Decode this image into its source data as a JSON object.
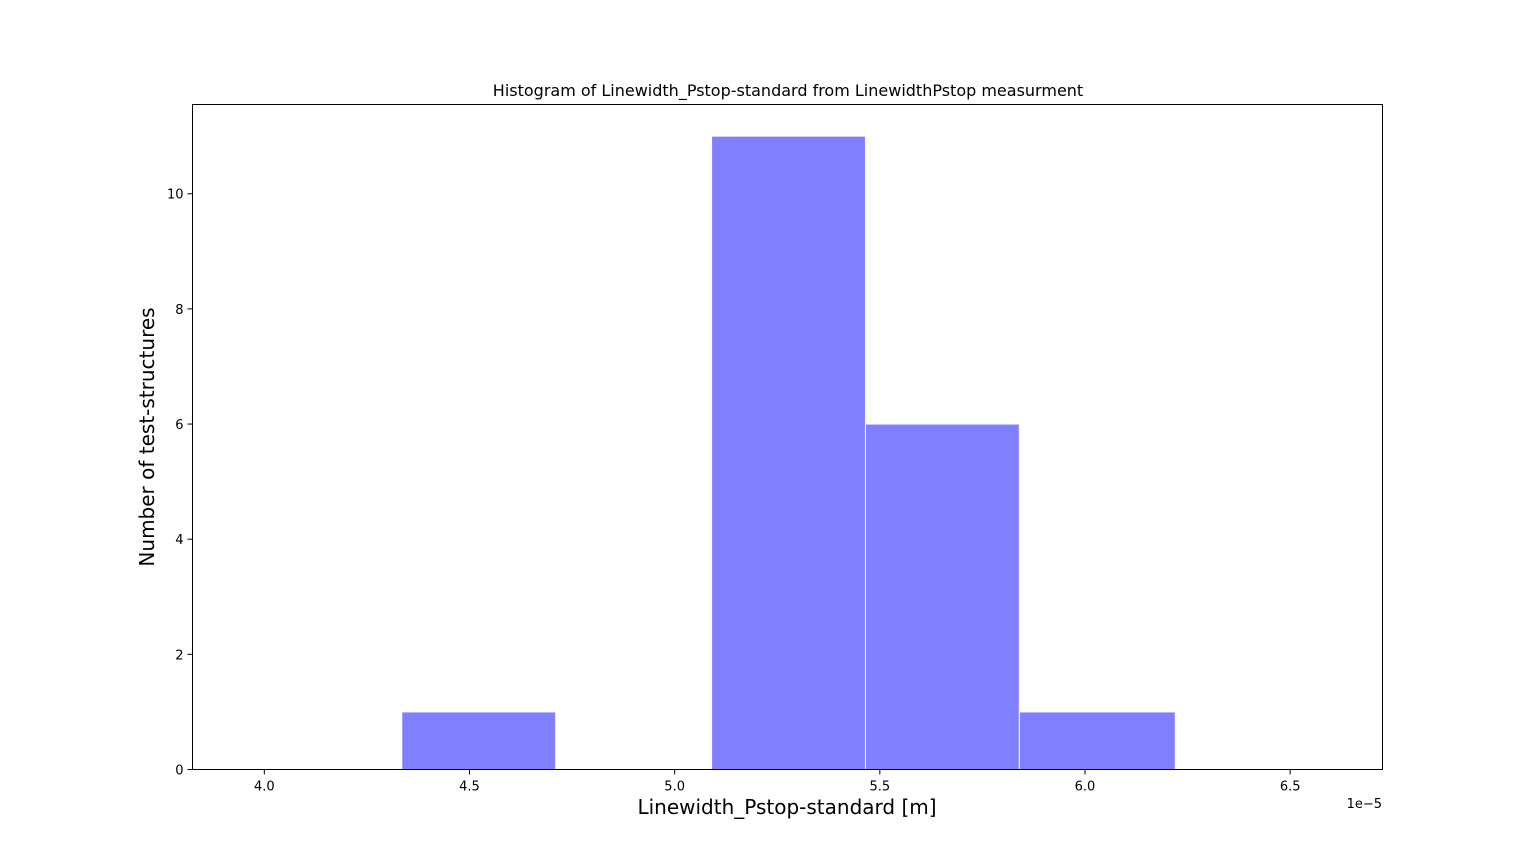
{
  "chart_data": {
    "type": "bar",
    "subtype": "histogram",
    "title": "Histogram of Linewidth_Pstop-standard from LinewidthPstop measurment",
    "xlabel": "Linewidth_Pstop-standard [m]",
    "ylabel": "Number of test-structures",
    "x_offset_label": "1e−5",
    "xlim": [
      3.825,
      6.725
    ],
    "ylim": [
      0,
      11.55
    ],
    "x_ticks": [
      4.0,
      4.5,
      5.0,
      5.5,
      6.0,
      6.5
    ],
    "x_tick_labels": [
      "4.0",
      "4.5",
      "5.0",
      "5.5",
      "6.0",
      "6.5"
    ],
    "y_ticks": [
      0,
      2,
      4,
      6,
      8,
      10
    ],
    "y_tick_labels": [
      "0",
      "2",
      "4",
      "6",
      "8",
      "10"
    ],
    "bins": [
      {
        "x0": 4.335,
        "x1": 4.71,
        "count": 1
      },
      {
        "x0": 4.71,
        "x1": 5.09,
        "count": 0
      },
      {
        "x0": 5.09,
        "x1": 5.465,
        "count": 11
      },
      {
        "x0": 5.465,
        "x1": 5.84,
        "count": 6
      },
      {
        "x0": 5.84,
        "x1": 6.22,
        "count": 1
      }
    ],
    "bar_color": "#8080ff",
    "edge_color": "#ffffff",
    "grid": false,
    "legend": "none"
  }
}
